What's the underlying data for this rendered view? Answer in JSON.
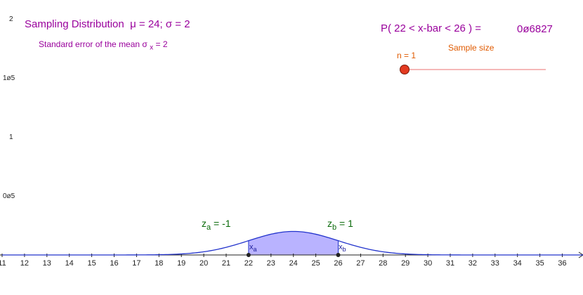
{
  "header": {
    "title_main": "Sampling Distribution",
    "title_params": "μ = 24; σ = 2",
    "std_error_prefix": "Standard error of the mean σ",
    "std_error_sub": "x",
    "std_error_value": "= 2"
  },
  "probability": {
    "expression": "P( 22 < x-bar < 26 ) =",
    "value": "0ø6827"
  },
  "slider": {
    "n_label": "n = 1",
    "title": "Sample size",
    "value": 1,
    "track_color": "#f2a0a0",
    "handle_color": "#e33a20"
  },
  "markers": {
    "za_prefix": "z",
    "za_sub": "a",
    "za_value": "= -1",
    "zb_prefix": "z",
    "zb_sub": "b",
    "zb_value": "= 1",
    "xa_prefix": "x",
    "xa_sub": "a",
    "xb_prefix": "x",
    "xb_sub": "b"
  },
  "colors": {
    "title": "#99009c",
    "accent_orange": "#e05a00",
    "curve": "#2233cc",
    "fill": "#b9b3ff",
    "z_text": "#0a6a0a"
  },
  "chart_data": {
    "type": "area",
    "distribution": "normal",
    "mean": 24,
    "sd": 2,
    "shade_from": 22,
    "shade_to": 26,
    "xlim": [
      11,
      37
    ],
    "ylim": [
      0,
      2
    ],
    "x_ticks": [
      "11",
      "12",
      "13",
      "14",
      "15",
      "16",
      "17",
      "18",
      "19",
      "20",
      "21",
      "22",
      "23",
      "24",
      "25",
      "26",
      "27",
      "28",
      "29",
      "30",
      "31",
      "32",
      "33",
      "34",
      "35",
      "36"
    ],
    "y_tick_labels": [
      "0ø5",
      "1",
      "1ø5",
      "2"
    ],
    "y_tick_values": [
      0.5,
      1,
      1.5,
      2
    ],
    "grid": false
  }
}
